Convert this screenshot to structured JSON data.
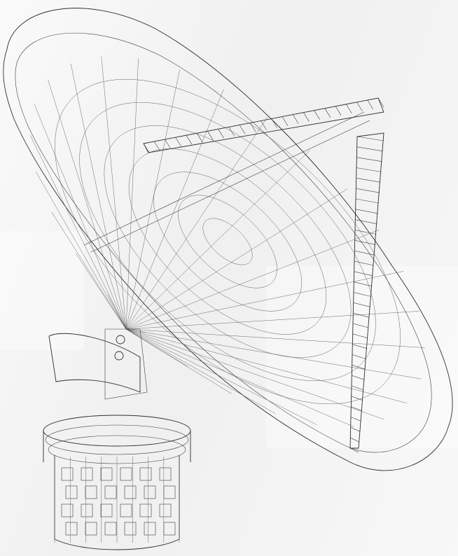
{
  "scene": {
    "subject": "radio-telescope-dish",
    "style": "wireframe",
    "colors": {
      "background": "#f2f2f2",
      "line": "#3c3c3c"
    }
  }
}
